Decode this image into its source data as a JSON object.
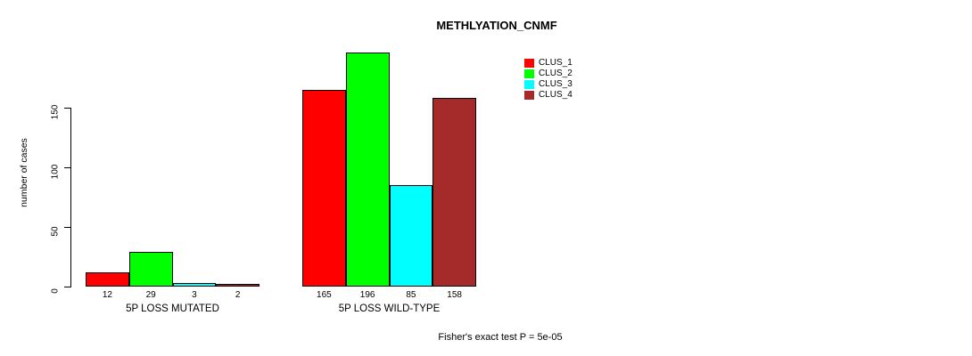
{
  "chart_data": {
    "type": "bar",
    "title": "METHLYATION_CNMF",
    "ylabel": "number of cases",
    "xlabel": "",
    "annotation": "Fisher's exact test P = 5e-05",
    "categories": [
      "5P LOSS MUTATED",
      "5P LOSS WILD-TYPE"
    ],
    "series": [
      {
        "name": "CLUS_1",
        "color": "#ff0000",
        "values": [
          12,
          165
        ]
      },
      {
        "name": "CLUS_2",
        "color": "#00ff00",
        "values": [
          29,
          196
        ]
      },
      {
        "name": "CLUS_3",
        "color": "#00ffff",
        "values": [
          3,
          85
        ]
      },
      {
        "name": "CLUS_4",
        "color": "#a52a2a",
        "values": [
          2,
          158
        ]
      }
    ],
    "yticks": [
      0,
      50,
      100,
      150
    ],
    "ylim": [
      0,
      200
    ],
    "bar_labels": true,
    "grid": false,
    "legend_position": "top-right",
    "text_color": "#000000",
    "background_color": "#ffffff"
  }
}
